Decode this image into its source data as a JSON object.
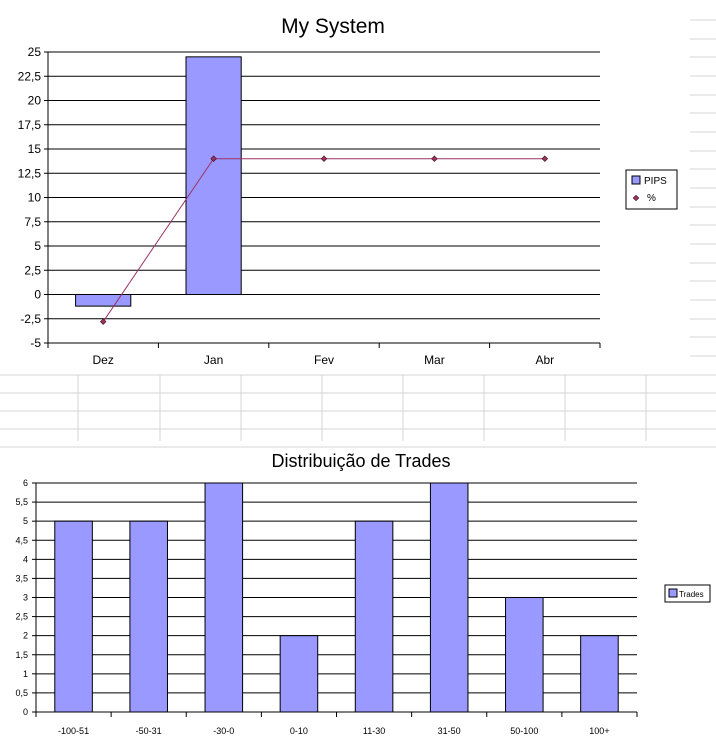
{
  "chart_data": [
    {
      "type": "bar+line",
      "title": "My System",
      "categories": [
        "Dez",
        "Jan",
        "Fev",
        "Mar",
        "Abr"
      ],
      "series": [
        {
          "name": "PIPS",
          "type": "bar",
          "values": [
            -1.2,
            24.5,
            0,
            0,
            0
          ]
        },
        {
          "name": "%",
          "type": "line",
          "values": [
            -2.8,
            14,
            14,
            14,
            14
          ]
        }
      ],
      "ylim": [
        -5,
        25
      ],
      "ytick_step": 2.5,
      "yticks": [
        "25",
        "22,5",
        "20",
        "17,5",
        "15",
        "12,5",
        "10",
        "7,5",
        "5",
        "2,5",
        "0",
        "-2,5",
        "-5"
      ],
      "grid": true,
      "legend": "right",
      "colors": {
        "bar": "#9999ff",
        "line": "#993366"
      }
    },
    {
      "type": "bar",
      "title": "Distribuição de Trades",
      "categories": [
        "-100-51",
        "-50-31",
        "-30-0",
        "0-10",
        "11-30",
        "31-50",
        "50-100",
        "100+"
      ],
      "series": [
        {
          "name": "Trades",
          "values": [
            5,
            5,
            6,
            2,
            5,
            6,
            3,
            2
          ]
        }
      ],
      "ylim": [
        0,
        6
      ],
      "ytick_step": 0.5,
      "yticks": [
        "6",
        "5,5",
        "5",
        "4,5",
        "4",
        "3,5",
        "3",
        "2,5",
        "2",
        "1,5",
        "1",
        "0,5",
        "0"
      ],
      "grid": true,
      "legend": "right",
      "colors": {
        "bar": "#9999ff"
      }
    }
  ]
}
